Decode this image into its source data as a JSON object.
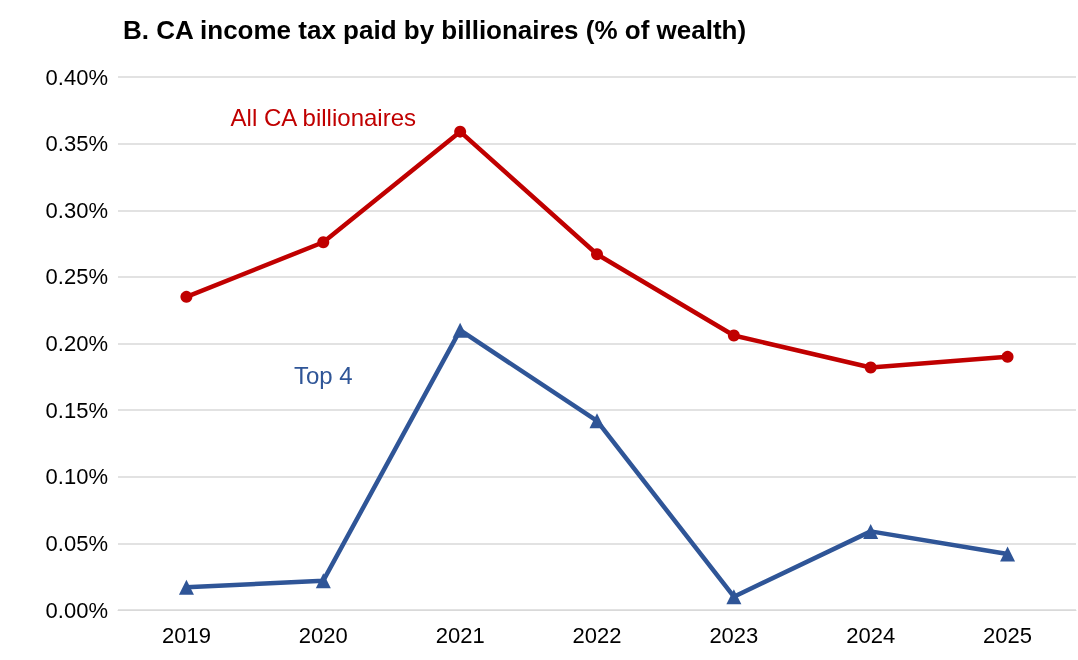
{
  "chart_data": {
    "type": "line",
    "title": "B. CA income tax paid by billionaires (% of wealth)",
    "categories": [
      "2019",
      "2020",
      "2021",
      "2022",
      "2023",
      "2024",
      "2025"
    ],
    "series": [
      {
        "name": "All CA billionaires",
        "color": "#c00000",
        "marker": "circle",
        "values": [
          0.235,
          0.276,
          0.359,
          0.267,
          0.206,
          0.182,
          0.19
        ]
      },
      {
        "name": "Top 4",
        "color": "#2f5597",
        "marker": "triangle",
        "values": [
          0.017,
          0.022,
          0.21,
          0.142,
          0.01,
          0.059,
          0.042
        ]
      }
    ],
    "ylim": [
      0,
      0.4
    ],
    "yticks": [
      {
        "value": 0,
        "label": "0.00%"
      },
      {
        "value": 0.05,
        "label": "0.05%"
      },
      {
        "value": 0.1,
        "label": "0.10%"
      },
      {
        "value": 0.15,
        "label": "0.15%"
      },
      {
        "value": 0.2,
        "label": "0.20%"
      },
      {
        "value": 0.25,
        "label": "0.25%"
      },
      {
        "value": 0.3,
        "label": "0.30%"
      },
      {
        "value": 0.35,
        "label": "0.35%"
      },
      {
        "value": 0.4,
        "label": "0.40%"
      }
    ],
    "grid": "y",
    "legend": false,
    "line_style": "solid"
  }
}
